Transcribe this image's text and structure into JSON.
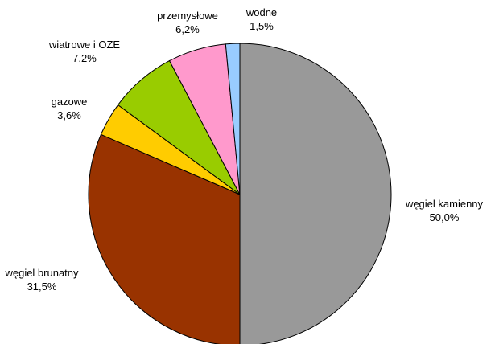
{
  "chart_data": {
    "type": "pie",
    "title": "",
    "slices": [
      {
        "label": "węgiel kamienny",
        "value": 50.0,
        "value_text": "50,0%",
        "color": "#999999"
      },
      {
        "label": "węgiel brunatny",
        "value": 31.5,
        "value_text": "31,5%",
        "color": "#993300"
      },
      {
        "label": "gazowe",
        "value": 3.6,
        "value_text": "3,6%",
        "color": "#ffcc00"
      },
      {
        "label": "wiatrowe i OZE",
        "value": 7.2,
        "value_text": "7,2%",
        "color": "#99cc00"
      },
      {
        "label": "przemysłowe",
        "value": 6.2,
        "value_text": "6,2%",
        "color": "#ff99cc"
      },
      {
        "label": "wodne",
        "value": 1.5,
        "value_text": "1,5%",
        "color": "#99ccff"
      }
    ],
    "legend": "none",
    "data_labels": "outside"
  }
}
